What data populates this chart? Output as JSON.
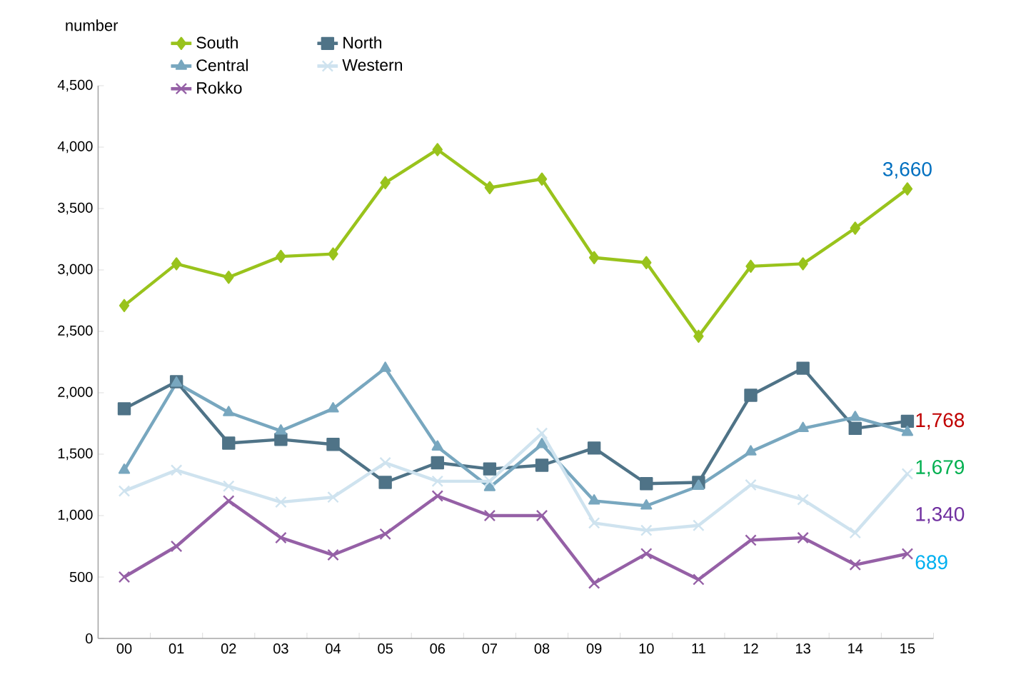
{
  "chart_data": {
    "type": "line",
    "ylabel": "number",
    "categories": [
      "00",
      "01",
      "02",
      "03",
      "04",
      "05",
      "06",
      "07",
      "08",
      "09",
      "10",
      "11",
      "12",
      "13",
      "14",
      "15"
    ],
    "series": [
      {
        "name": "South",
        "color": "#99c31c",
        "marker": "diamond",
        "values": [
          2710,
          3050,
          2940,
          3110,
          3130,
          3710,
          3980,
          3670,
          3740,
          3100,
          3060,
          2460,
          3030,
          3050,
          3340,
          3660
        ]
      },
      {
        "name": "North",
        "color": "#4f7387",
        "marker": "square",
        "values": [
          1870,
          2090,
          1590,
          1620,
          1580,
          1270,
          1430,
          1380,
          1410,
          1550,
          1260,
          1270,
          1980,
          2200,
          1710,
          1768
        ]
      },
      {
        "name": "Central",
        "color": "#78a7bf",
        "marker": "triangle",
        "values": [
          1370,
          2080,
          1840,
          1690,
          1870,
          2200,
          1560,
          1230,
          1580,
          1120,
          1080,
          1240,
          1520,
          1710,
          1800,
          1679
        ]
      },
      {
        "name": "Western",
        "color": "#cfe3ef",
        "marker": "cross",
        "values": [
          1200,
          1370,
          1240,
          1110,
          1150,
          1430,
          1280,
          1280,
          1670,
          940,
          880,
          920,
          1250,
          1130,
          860,
          1340
        ]
      },
      {
        "name": "Rokko",
        "color": "#9560a6",
        "marker": "cross",
        "values": [
          500,
          750,
          1120,
          820,
          680,
          850,
          1160,
          1000,
          1000,
          450,
          690,
          480,
          800,
          820,
          600,
          689
        ]
      }
    ],
    "ylim": [
      0,
      4500
    ],
    "yticks": [
      0,
      500,
      {
        "value": 1000,
        "label": "1,000"
      },
      {
        "value": 1500,
        "label": "1,500"
      },
      {
        "value": 2000,
        "label": "2,000"
      },
      {
        "value": 2500,
        "label": "2,500"
      },
      {
        "value": 3000,
        "label": "3,000"
      },
      {
        "value": 3500,
        "label": "3,500"
      },
      {
        "value": 4000,
        "label": "4,000"
      },
      {
        "value": 4500,
        "label": "4,500"
      }
    ],
    "annotations": [
      {
        "text": "3,660",
        "x": "15",
        "y": 3660
      },
      {
        "text": "1,768",
        "x": "15",
        "y": 1768
      },
      {
        "text": "1,679",
        "x": "15",
        "y": 1679
      },
      {
        "text": "1,340",
        "x": "15",
        "y": 1340
      },
      {
        "text": "689",
        "x": "15",
        "y": 689
      }
    ],
    "legend": "top",
    "grid": false,
    "line_style": "solid"
  }
}
